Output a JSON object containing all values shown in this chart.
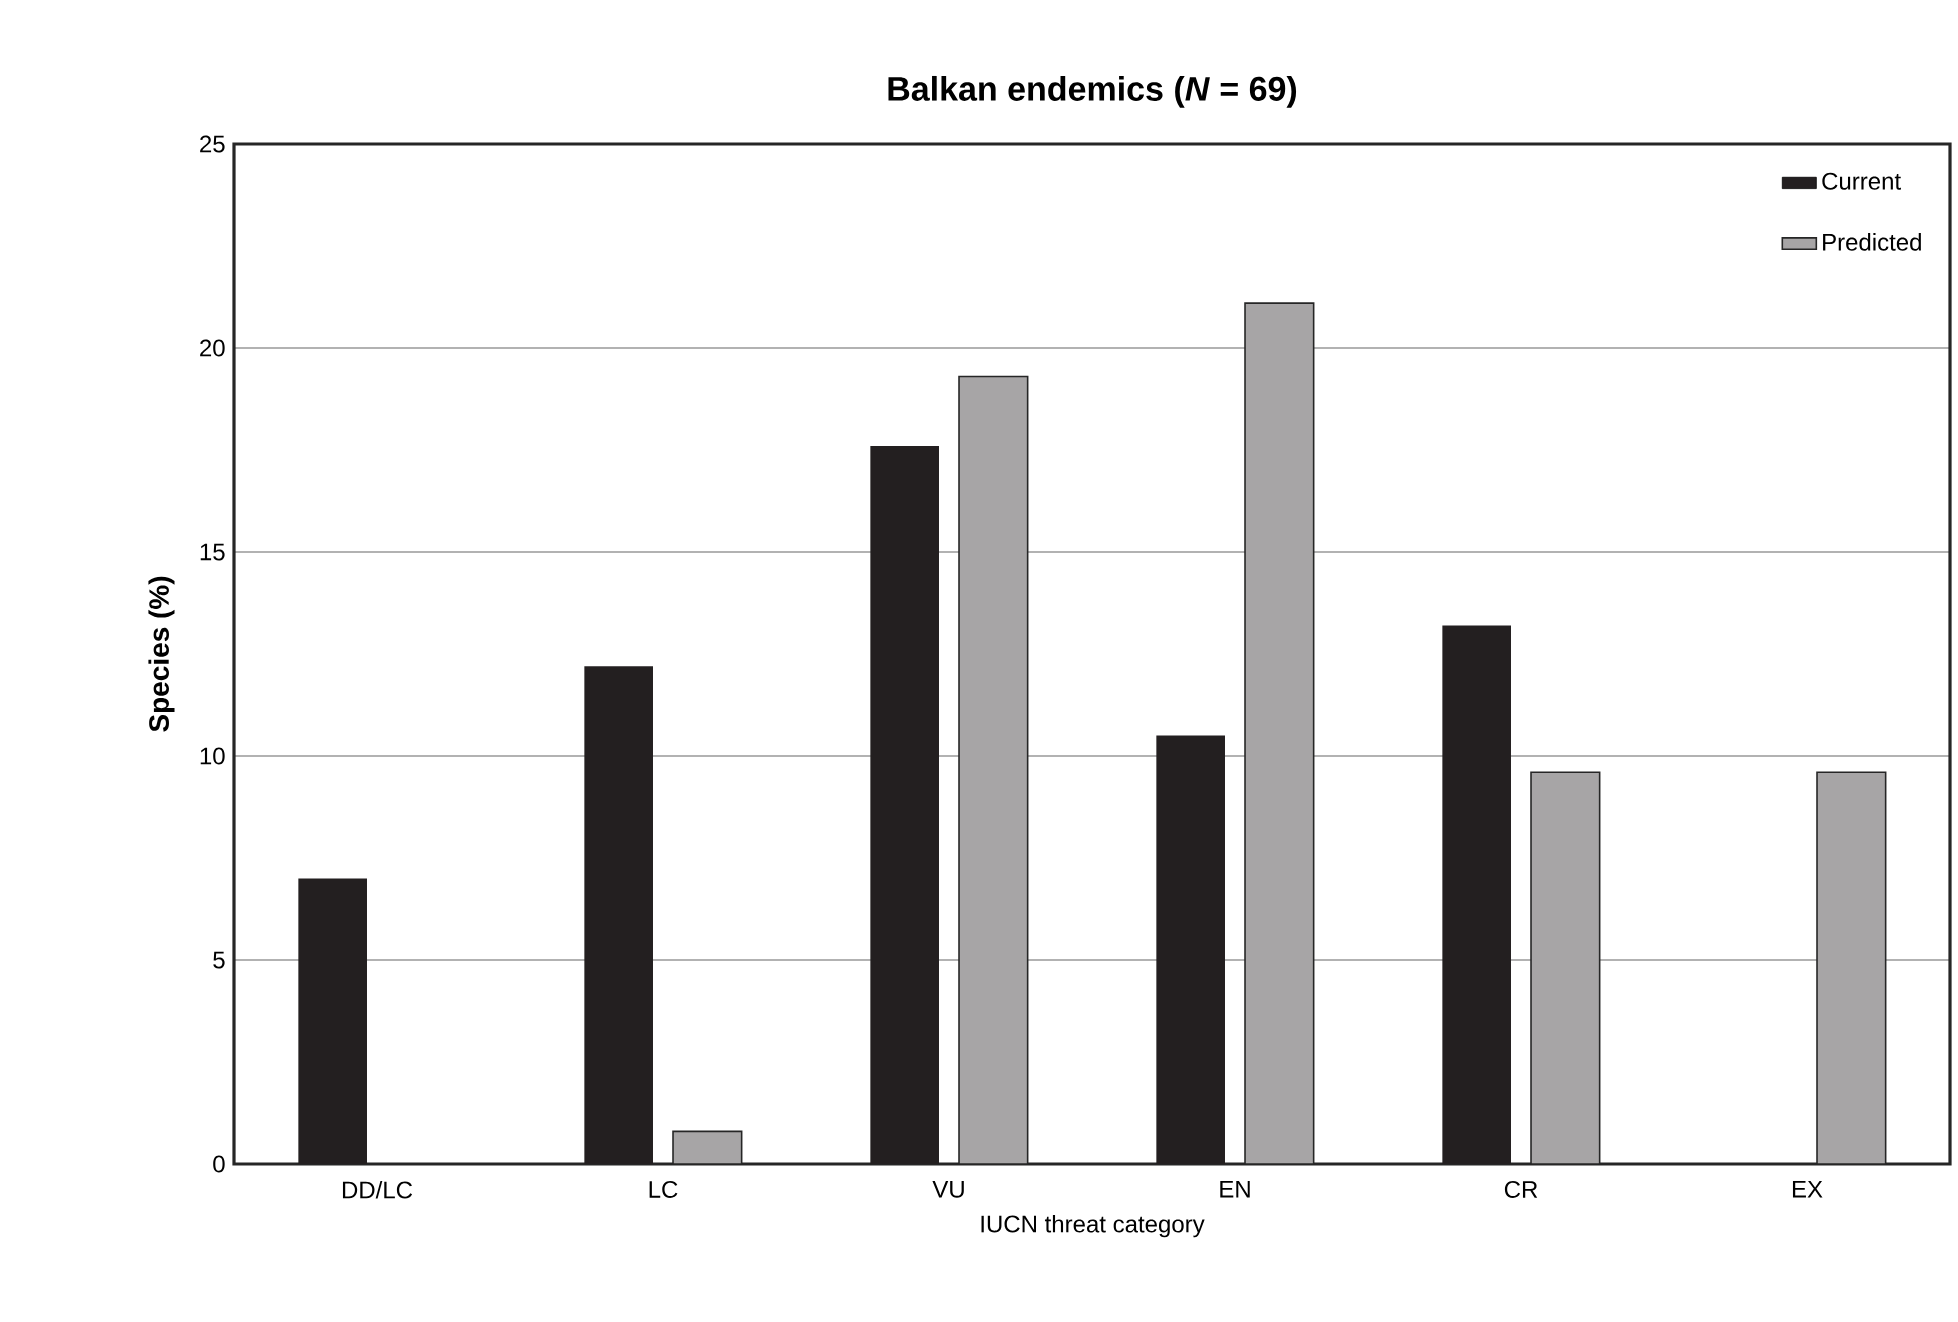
{
  "chart_data": {
    "type": "bar",
    "title": "Balkan endemics (*N* = 69)",
    "xlabel": "IUCN threat category",
    "ylabel": "Species (%)",
    "categories": [
      "DD/LC",
      "LC",
      "VU",
      "EN",
      "CR",
      "EX"
    ],
    "series": [
      {
        "name": "Current",
        "color": "#231f20",
        "values": [
          7.0,
          12.2,
          17.6,
          10.5,
          13.2,
          null
        ]
      },
      {
        "name": "Predicted",
        "color": "#a7a5a6",
        "values": [
          null,
          0.8,
          19.3,
          21.1,
          9.6,
          9.6
        ]
      }
    ],
    "ylim": [
      0,
      25
    ],
    "yticks": [
      0,
      5,
      10,
      15,
      20,
      25
    ],
    "grid": "y",
    "legend": "top right"
  }
}
